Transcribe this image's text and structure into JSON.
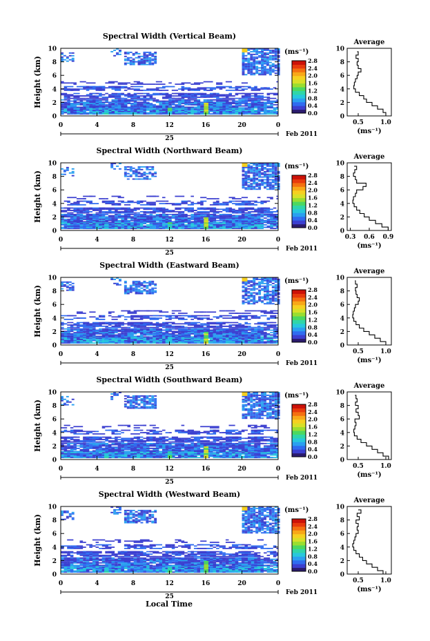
{
  "figure": {
    "bottom_xlabel": "Local Time",
    "date_label": "Feb 2011",
    "day_label": "25",
    "cbar_unit": "(ms⁻¹)",
    "avg_title": "Average",
    "avg_xlabel": "(ms⁻¹)",
    "ylabel": "Height (km)"
  },
  "chart_data": [
    {
      "type": "heatmap",
      "title": "Spectral Width (Vertical Beam)",
      "xlabel": "",
      "ylabel": "Height (km)",
      "x_ticks": [
        "0",
        "4",
        "8",
        "12",
        "16",
        "20",
        "0"
      ],
      "y_ticks": [
        "0",
        "2",
        "4",
        "6",
        "8",
        "10"
      ],
      "xlim": [
        0,
        24
      ],
      "ylim": [
        0,
        10
      ],
      "colorbar": {
        "label": "(ms⁻¹)",
        "ticks": [
          "0.0",
          "0.4",
          "0.8",
          "1.2",
          "1.6",
          "2.0",
          "2.4",
          "2.8"
        ],
        "range": [
          0,
          2.8
        ]
      },
      "average_profile": {
        "title": "Average",
        "xlabel": "(ms⁻¹)",
        "xticks": [
          "0.5",
          "1.0"
        ],
        "xlim": [
          0.3,
          1.1
        ],
        "x": [
          1.0,
          0.95,
          0.85,
          0.75,
          0.65,
          0.6,
          0.52,
          0.45,
          0.42,
          0.43,
          0.45,
          0.48,
          0.5,
          0.55,
          0.5,
          0.48,
          0.5,
          0.46,
          0.5,
          0.48
        ],
        "y": [
          0,
          0.5,
          1,
          1.5,
          2,
          2.5,
          3,
          3.5,
          4,
          4.5,
          5,
          5.5,
          6,
          6.5,
          7,
          7.5,
          8,
          8.5,
          9,
          9.5
        ]
      }
    },
    {
      "type": "heatmap",
      "title": "Spectral Width (Northward Beam)",
      "xlabel": "",
      "ylabel": "Height (km)",
      "x_ticks": [
        "0",
        "4",
        "8",
        "12",
        "16",
        "20",
        "0"
      ],
      "y_ticks": [
        "0",
        "2",
        "4",
        "6",
        "8",
        "10"
      ],
      "xlim": [
        0,
        24
      ],
      "ylim": [
        0,
        10
      ],
      "colorbar": {
        "label": "(ms⁻¹)",
        "ticks": [
          "0.0",
          "0.4",
          "0.8",
          "1.2",
          "1.6",
          "2.0",
          "2.4",
          "2.8"
        ],
        "range": [
          0,
          2.8
        ]
      },
      "average_profile": {
        "title": "Average",
        "xlabel": "(ms⁻¹)",
        "xticks": [
          "0.3",
          "0.6",
          "0.9"
        ],
        "xlim": [
          0.25,
          0.95
        ],
        "x": [
          0.9,
          0.8,
          0.7,
          0.6,
          0.52,
          0.45,
          0.4,
          0.36,
          0.34,
          0.35,
          0.38,
          0.4,
          0.5,
          0.55,
          0.4,
          0.38,
          0.35,
          0.37,
          0.4,
          0.36
        ],
        "y": [
          0,
          0.5,
          1,
          1.5,
          2,
          2.5,
          3,
          3.5,
          4,
          4.5,
          5,
          5.5,
          6,
          6.5,
          7,
          7.5,
          8,
          8.5,
          9,
          9.5
        ]
      }
    },
    {
      "type": "heatmap",
      "title": "Spectral Width (Eastward Beam)",
      "xlabel": "",
      "ylabel": "Height (km)",
      "x_ticks": [
        "0",
        "4",
        "8",
        "12",
        "16",
        "20",
        "0"
      ],
      "y_ticks": [
        "0",
        "2",
        "4",
        "6",
        "8",
        "10"
      ],
      "xlim": [
        0,
        24
      ],
      "ylim": [
        0,
        10
      ],
      "colorbar": {
        "label": "(ms⁻¹)",
        "ticks": [
          "0.0",
          "0.4",
          "0.8",
          "1.2",
          "1.6",
          "2.0",
          "2.4",
          "2.8"
        ],
        "range": [
          0,
          2.8
        ]
      },
      "average_profile": {
        "title": "Average",
        "xlabel": "(ms⁻¹)",
        "xticks": [
          "0.5",
          "1.0"
        ],
        "xlim": [
          0.3,
          1.1
        ],
        "x": [
          1.0,
          0.9,
          0.8,
          0.7,
          0.6,
          0.52,
          0.46,
          0.42,
          0.4,
          0.41,
          0.43,
          0.45,
          0.5,
          0.52,
          0.48,
          0.46,
          0.45,
          0.48,
          0.45,
          0.44
        ],
        "y": [
          0,
          0.5,
          1,
          1.5,
          2,
          2.5,
          3,
          3.5,
          4,
          4.5,
          5,
          5.5,
          6,
          6.5,
          7,
          7.5,
          8,
          8.5,
          9,
          9.5
        ]
      }
    },
    {
      "type": "heatmap",
      "title": "Spectral Width (Southward Beam)",
      "xlabel": "",
      "ylabel": "Height (km)",
      "x_ticks": [
        "0",
        "4",
        "8",
        "12",
        "16",
        "20",
        "0"
      ],
      "y_ticks": [
        "0",
        "2",
        "4",
        "6",
        "8",
        "10"
      ],
      "xlim": [
        0,
        24
      ],
      "ylim": [
        0,
        10
      ],
      "colorbar": {
        "label": "(ms⁻¹)",
        "ticks": [
          "0.0",
          "0.4",
          "0.8",
          "1.2",
          "1.6",
          "2.0",
          "2.4",
          "2.8"
        ],
        "range": [
          0,
          2.8
        ]
      },
      "average_profile": {
        "title": "Average",
        "xlabel": "(ms⁻¹)",
        "xticks": [
          "0.5",
          "1.0"
        ],
        "xlim": [
          0.3,
          1.1
        ],
        "x": [
          1.05,
          0.95,
          0.85,
          0.75,
          0.65,
          0.55,
          0.48,
          0.43,
          0.42,
          0.44,
          0.46,
          0.44,
          0.52,
          0.5,
          0.46,
          0.5,
          0.45,
          0.48,
          0.46,
          0.44
        ],
        "y": [
          0,
          0.5,
          1,
          1.5,
          2,
          2.5,
          3,
          3.5,
          4,
          4.5,
          5,
          5.5,
          6,
          6.5,
          7,
          7.5,
          8,
          8.5,
          9,
          9.5
        ]
      }
    },
    {
      "type": "heatmap",
      "title": "Spectral Width (Westward Beam)",
      "xlabel": "",
      "ylabel": "Height (km)",
      "x_ticks": [
        "0",
        "4",
        "8",
        "12",
        "16",
        "20",
        "0"
      ],
      "y_ticks": [
        "0",
        "2",
        "4",
        "6",
        "8",
        "10"
      ],
      "xlim": [
        0,
        24
      ],
      "ylim": [
        0,
        10
      ],
      "colorbar": {
        "label": "(ms⁻¹)",
        "ticks": [
          "0.0",
          "0.4",
          "0.8",
          "1.2",
          "1.6",
          "2.0",
          "2.4",
          "2.8"
        ],
        "range": [
          0,
          2.8
        ]
      },
      "average_profile": {
        "title": "Average",
        "xlabel": "(ms⁻¹)",
        "xticks": [
          "0.5",
          "1.0"
        ],
        "xlim": [
          0.3,
          1.1
        ],
        "x": [
          0.95,
          0.85,
          0.75,
          0.65,
          0.58,
          0.52,
          0.46,
          0.42,
          0.4,
          0.42,
          0.44,
          0.46,
          0.5,
          0.48,
          0.5,
          0.46,
          0.52,
          0.48,
          0.55,
          0.5
        ],
        "y": [
          0,
          0.5,
          1,
          1.5,
          2,
          2.5,
          3,
          3.5,
          4,
          4.5,
          5,
          5.5,
          6,
          6.5,
          7,
          7.5,
          8,
          8.5,
          9,
          9.5
        ]
      }
    }
  ]
}
